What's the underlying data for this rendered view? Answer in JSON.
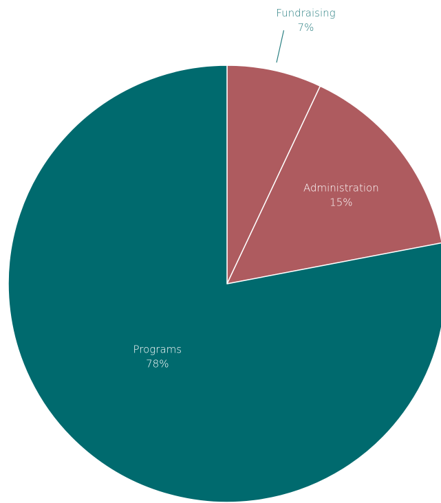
{
  "chart_data": {
    "type": "pie",
    "title": "",
    "start_angle_deg": 0,
    "direction": "clockwise",
    "slices": [
      {
        "label": "Fundraising",
        "value": 7,
        "value_label": "7%",
        "color": "#AE5B5F",
        "label_color": "#2A7F82",
        "label_placement": "outside"
      },
      {
        "label": "Administration",
        "value": 15,
        "value_label": "15%",
        "color": "#AE5B5F",
        "label_color": "#FFFFFF",
        "label_placement": "inside"
      },
      {
        "label": "Programs",
        "value": 78,
        "value_label": "78%",
        "color": "#006A6E",
        "label_color": "#FFFFFF",
        "label_placement": "inside"
      }
    ],
    "slice_border_color": "#FFFFFF"
  }
}
